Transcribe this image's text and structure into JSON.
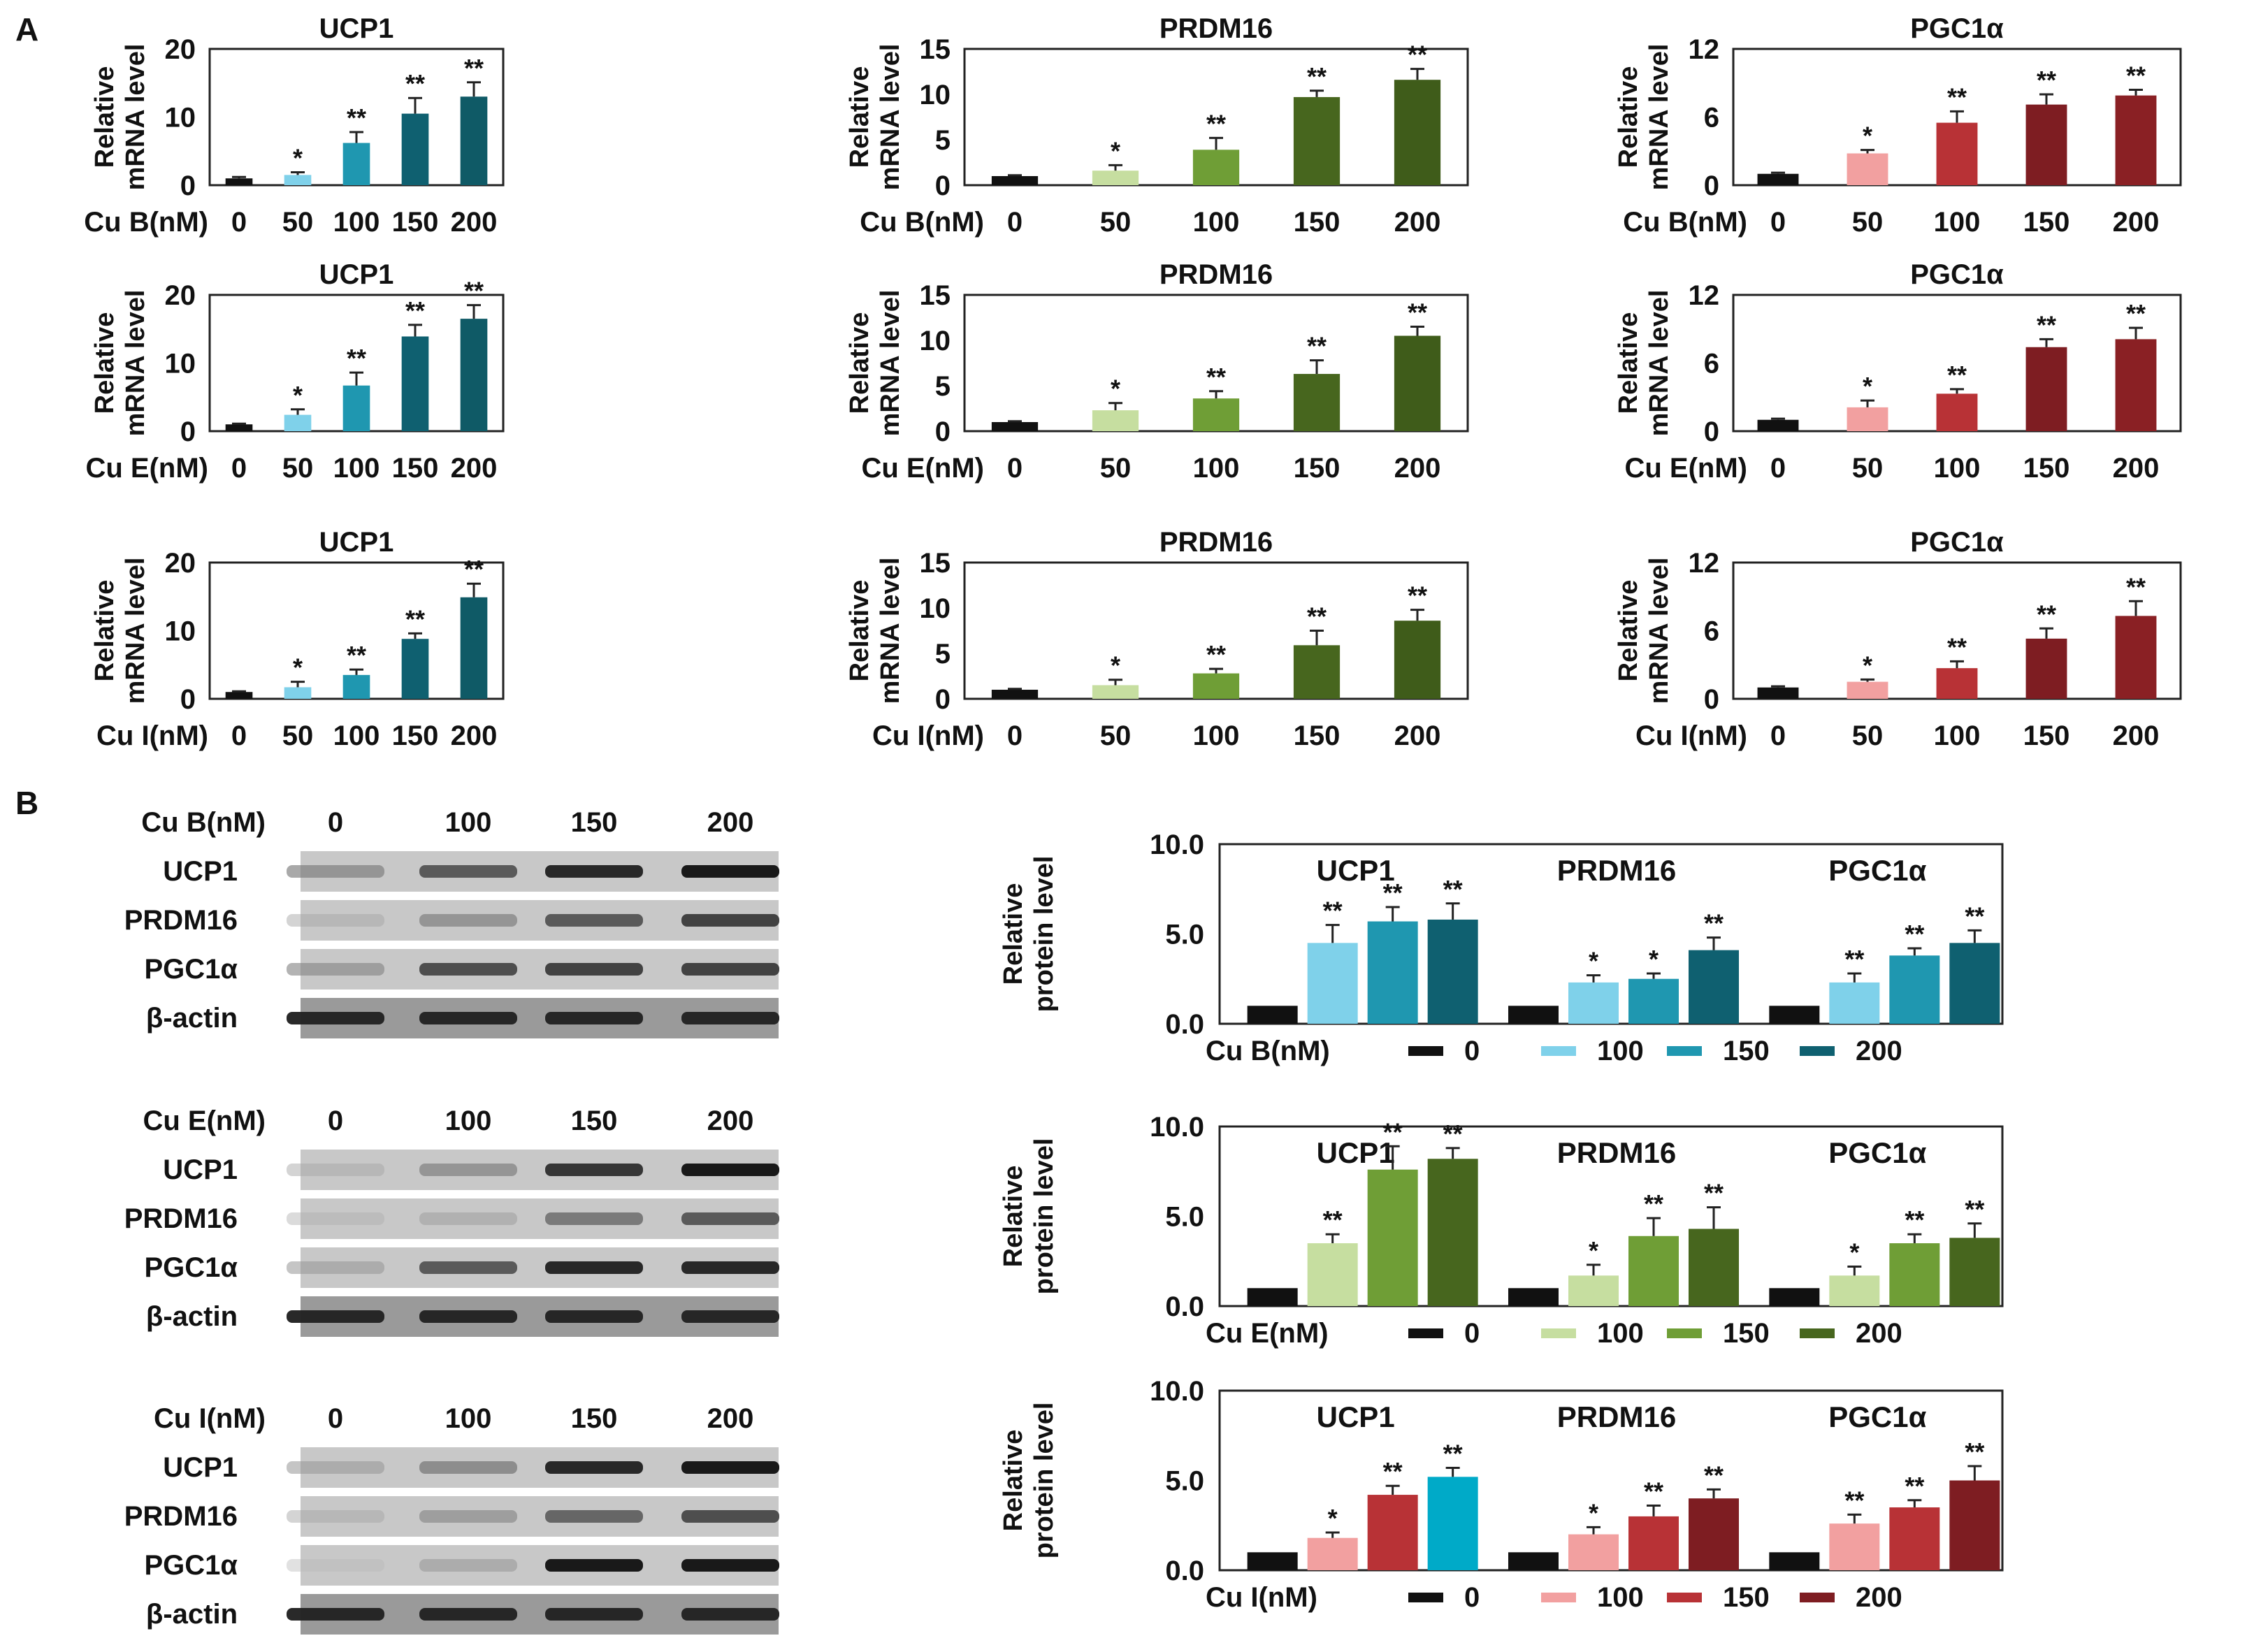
{
  "panel_labels": {
    "a": "A",
    "b": "B"
  },
  "colors": {
    "control": "#111111",
    "blue": [
      "#7fd1ea",
      "#1f97b0",
      "#0f6070",
      "#0f5a66"
    ],
    "blue_protein_cuI_200": "#00aac8",
    "green": [
      "#c6dea0",
      "#6f9e36",
      "#47661e",
      "#3f5c1a"
    ],
    "red": [
      "#f2a0a0",
      "#b83236",
      "#7e1d22",
      "#8a2024"
    ]
  },
  "blots": [
    {
      "treatment": "Cu B(nM)",
      "lanes": [
        "0",
        "100",
        "150",
        "200"
      ],
      "rows": [
        "UCP1",
        "PRDM16",
        "PGC1α",
        "β-actin"
      ],
      "intensity": [
        [
          0.45,
          0.75,
          0.95,
          1.0
        ],
        [
          0.2,
          0.45,
          0.75,
          0.85
        ],
        [
          0.4,
          0.8,
          0.85,
          0.85
        ],
        [
          0.95,
          0.95,
          0.95,
          0.95
        ]
      ]
    },
    {
      "treatment": "Cu E(nM)",
      "lanes": [
        "0",
        "100",
        "150",
        "200"
      ],
      "rows": [
        "UCP1",
        "PRDM16",
        "PGC1α",
        "β-actin"
      ],
      "intensity": [
        [
          0.2,
          0.45,
          0.9,
          1.0
        ],
        [
          0.15,
          0.25,
          0.6,
          0.75
        ],
        [
          0.3,
          0.75,
          0.95,
          0.95
        ],
        [
          0.95,
          0.95,
          0.95,
          0.95
        ]
      ]
    },
    {
      "treatment": "Cu I(nM)",
      "lanes": [
        "0",
        "100",
        "150",
        "200"
      ],
      "rows": [
        "UCP1",
        "PRDM16",
        "PGC1α",
        "β-actin"
      ],
      "intensity": [
        [
          0.3,
          0.5,
          0.95,
          1.0
        ],
        [
          0.2,
          0.4,
          0.7,
          0.8
        ],
        [
          0.1,
          0.3,
          1.0,
          1.0
        ],
        [
          0.95,
          0.95,
          0.95,
          0.95
        ]
      ]
    }
  ],
  "chart_data": [
    {
      "type": "bar",
      "panel": "A",
      "title": "UCP1",
      "treatment_label": "Cu B(nM)",
      "ylabel": "Relative mRNA level",
      "ylim": [
        0,
        20
      ],
      "yticks": [
        "0",
        "10",
        "20"
      ],
      "categories": [
        "0",
        "50",
        "100",
        "150",
        "200"
      ],
      "values": [
        1,
        1.5,
        6.2,
        10.5,
        13
      ],
      "errors": [
        0.2,
        0.4,
        1.6,
        2.3,
        2.1
      ],
      "significance": [
        "",
        "*",
        "**",
        "**",
        "**"
      ],
      "palette": "blue"
    },
    {
      "type": "bar",
      "panel": "A",
      "title": "PRDM16",
      "treatment_label": "Cu B(nM)",
      "ylabel": "Relative mRNA level",
      "ylim": [
        0,
        15
      ],
      "yticks": [
        "0",
        "5",
        "10",
        "15"
      ],
      "categories": [
        "0",
        "50",
        "100",
        "150",
        "200"
      ],
      "values": [
        1,
        1.6,
        3.9,
        9.7,
        11.6
      ],
      "errors": [
        0.1,
        0.6,
        1.3,
        0.7,
        1.2
      ],
      "significance": [
        "",
        "*",
        "**",
        "**",
        "**"
      ],
      "palette": "green"
    },
    {
      "type": "bar",
      "panel": "A",
      "title": "PGC1α",
      "treatment_label": "Cu B(nM)",
      "ylabel": "Relative mRNA level",
      "ylim": [
        0,
        12
      ],
      "yticks": [
        "0",
        "6",
        "12"
      ],
      "categories": [
        "0",
        "50",
        "100",
        "150",
        "200"
      ],
      "values": [
        1,
        2.8,
        5.5,
        7.1,
        7.9
      ],
      "errors": [
        0.1,
        0.3,
        1.0,
        0.9,
        0.5
      ],
      "significance": [
        "",
        "*",
        "**",
        "**",
        "**"
      ],
      "palette": "red"
    },
    {
      "type": "bar",
      "panel": "A",
      "title": "UCP1",
      "treatment_label": "Cu E(nM)",
      "ylabel": "Relative mRNA level",
      "ylim": [
        0,
        20
      ],
      "yticks": [
        "0",
        "10",
        "20"
      ],
      "categories": [
        "0",
        "50",
        "100",
        "150",
        "200"
      ],
      "values": [
        1,
        2.4,
        6.7,
        13.9,
        16.5
      ],
      "errors": [
        0.1,
        0.8,
        1.9,
        1.7,
        2.0
      ],
      "significance": [
        "",
        "*",
        "**",
        "**",
        "**"
      ],
      "palette": "blue"
    },
    {
      "type": "bar",
      "panel": "A",
      "title": "PRDM16",
      "treatment_label": "Cu E(nM)",
      "ylabel": "Relative mRNA level",
      "ylim": [
        0,
        15
      ],
      "yticks": [
        "0",
        "5",
        "10",
        "15"
      ],
      "categories": [
        "0",
        "50",
        "100",
        "150",
        "200"
      ],
      "values": [
        1,
        2.3,
        3.6,
        6.3,
        10.5
      ],
      "errors": [
        0.1,
        0.8,
        0.8,
        1.5,
        1.0
      ],
      "significance": [
        "",
        "*",
        "**",
        "**",
        "**"
      ],
      "palette": "green"
    },
    {
      "type": "bar",
      "panel": "A",
      "title": "PGC1α",
      "treatment_label": "Cu E(nM)",
      "ylabel": "Relative mRNA level",
      "ylim": [
        0,
        12
      ],
      "yticks": [
        "0",
        "6",
        "12"
      ],
      "categories": [
        "0",
        "50",
        "100",
        "150",
        "200"
      ],
      "values": [
        1,
        2.1,
        3.3,
        7.4,
        8.1
      ],
      "errors": [
        0.1,
        0.6,
        0.4,
        0.7,
        1.0
      ],
      "significance": [
        "",
        "*",
        "**",
        "**",
        "**"
      ],
      "palette": "red"
    },
    {
      "type": "bar",
      "panel": "A",
      "title": "UCP1",
      "treatment_label": "Cu I(nM)",
      "ylabel": "Relative mRNA level",
      "ylim": [
        0,
        20
      ],
      "yticks": [
        "0",
        "10",
        "20"
      ],
      "categories": [
        "0",
        "50",
        "100",
        "150",
        "200"
      ],
      "values": [
        1,
        1.7,
        3.5,
        8.8,
        14.9
      ],
      "errors": [
        0.1,
        0.8,
        0.8,
        0.8,
        2.0
      ],
      "significance": [
        "",
        "*",
        "**",
        "**",
        "**"
      ],
      "palette": "blue"
    },
    {
      "type": "bar",
      "panel": "A",
      "title": "PRDM16",
      "treatment_label": "Cu I(nM)",
      "ylabel": "Relative mRNA level",
      "ylim": [
        0,
        15
      ],
      "yticks": [
        "0",
        "5",
        "10",
        "15"
      ],
      "categories": [
        "0",
        "50",
        "100",
        "150",
        "200"
      ],
      "values": [
        1,
        1.5,
        2.8,
        5.9,
        8.6
      ],
      "errors": [
        0.1,
        0.6,
        0.5,
        1.6,
        1.2
      ],
      "significance": [
        "",
        "*",
        "**",
        "**",
        "**"
      ],
      "palette": "green"
    },
    {
      "type": "bar",
      "panel": "A",
      "title": "PGC1α",
      "treatment_label": "Cu I(nM)",
      "ylabel": "Relative mRNA level",
      "ylim": [
        0,
        12
      ],
      "yticks": [
        "0",
        "6",
        "12"
      ],
      "categories": [
        "0",
        "50",
        "100",
        "150",
        "200"
      ],
      "values": [
        1,
        1.5,
        2.7,
        5.3,
        7.3
      ],
      "errors": [
        0.1,
        0.2,
        0.6,
        0.9,
        1.3
      ],
      "significance": [
        "",
        "*",
        "**",
        "**",
        "**"
      ],
      "palette": "red"
    },
    {
      "type": "bar",
      "panel": "B",
      "title": "",
      "treatment_label": "Cu B(nM)",
      "ylabel": "Relative protein level",
      "ylim": [
        0,
        10
      ],
      "yticks": [
        "0.0",
        "5.0",
        "10.0"
      ],
      "groups": [
        "UCP1",
        "PRDM16",
        "PGC1α"
      ],
      "series": [
        {
          "name": "0",
          "values": [
            1.0,
            1.0,
            1.0
          ],
          "errors": [
            0,
            0,
            0
          ],
          "significance": [
            "",
            "",
            ""
          ]
        },
        {
          "name": "100",
          "values": [
            4.5,
            2.3,
            2.3
          ],
          "errors": [
            1.0,
            0.4,
            0.5
          ],
          "significance": [
            "**",
            "*",
            "**"
          ]
        },
        {
          "name": "150",
          "values": [
            5.7,
            2.5,
            3.8
          ],
          "errors": [
            0.8,
            0.3,
            0.4
          ],
          "significance": [
            "**",
            "*",
            "**"
          ]
        },
        {
          "name": "200",
          "values": [
            5.8,
            4.1,
            4.5
          ],
          "errors": [
            0.9,
            0.7,
            0.7
          ],
          "significance": [
            "**",
            "**",
            "**"
          ]
        }
      ],
      "palette": "blue"
    },
    {
      "type": "bar",
      "panel": "B",
      "title": "",
      "treatment_label": "Cu E(nM)",
      "ylabel": "Relative protein level",
      "ylim": [
        0,
        10
      ],
      "yticks": [
        "0.0",
        "5.0",
        "10.0"
      ],
      "groups": [
        "UCP1",
        "PRDM16",
        "PGC1α"
      ],
      "series": [
        {
          "name": "0",
          "values": [
            1.0,
            1.0,
            1.0
          ],
          "errors": [
            0,
            0,
            0
          ],
          "significance": [
            "",
            "",
            ""
          ]
        },
        {
          "name": "100",
          "values": [
            3.5,
            1.7,
            1.7
          ],
          "errors": [
            0.5,
            0.6,
            0.5
          ],
          "significance": [
            "**",
            "*",
            "*"
          ]
        },
        {
          "name": "150",
          "values": [
            7.6,
            3.9,
            3.5
          ],
          "errors": [
            1.3,
            1.0,
            0.5
          ],
          "significance": [
            "**",
            "**",
            "**"
          ]
        },
        {
          "name": "200",
          "values": [
            8.2,
            4.3,
            3.8
          ],
          "errors": [
            0.6,
            1.2,
            0.8
          ],
          "significance": [
            "**",
            "**",
            "**"
          ]
        }
      ],
      "palette": "green"
    },
    {
      "type": "bar",
      "panel": "B",
      "title": "",
      "treatment_label": "Cu I(nM)",
      "ylabel": "Relative protein level",
      "ylim": [
        0,
        10
      ],
      "yticks": [
        "0.0",
        "5.0",
        "10.0"
      ],
      "groups": [
        "UCP1",
        "PRDM16",
        "PGC1α"
      ],
      "series": [
        {
          "name": "0",
          "values": [
            1.0,
            1.0,
            1.0
          ],
          "errors": [
            0,
            0,
            0
          ],
          "significance": [
            "",
            "",
            ""
          ]
        },
        {
          "name": "100",
          "values": [
            1.8,
            2.0,
            2.6
          ],
          "errors": [
            0.3,
            0.4,
            0.5
          ],
          "significance": [
            "*",
            "*",
            "**"
          ]
        },
        {
          "name": "150",
          "values": [
            4.2,
            3.0,
            3.5
          ],
          "errors": [
            0.5,
            0.6,
            0.4
          ],
          "significance": [
            "**",
            "**",
            "**"
          ]
        },
        {
          "name": "200",
          "values": [
            5.2,
            4.0,
            5.0
          ],
          "errors": [
            0.5,
            0.5,
            0.8
          ],
          "significance": [
            "**",
            "**",
            "**"
          ]
        }
      ],
      "palette": "red"
    }
  ]
}
